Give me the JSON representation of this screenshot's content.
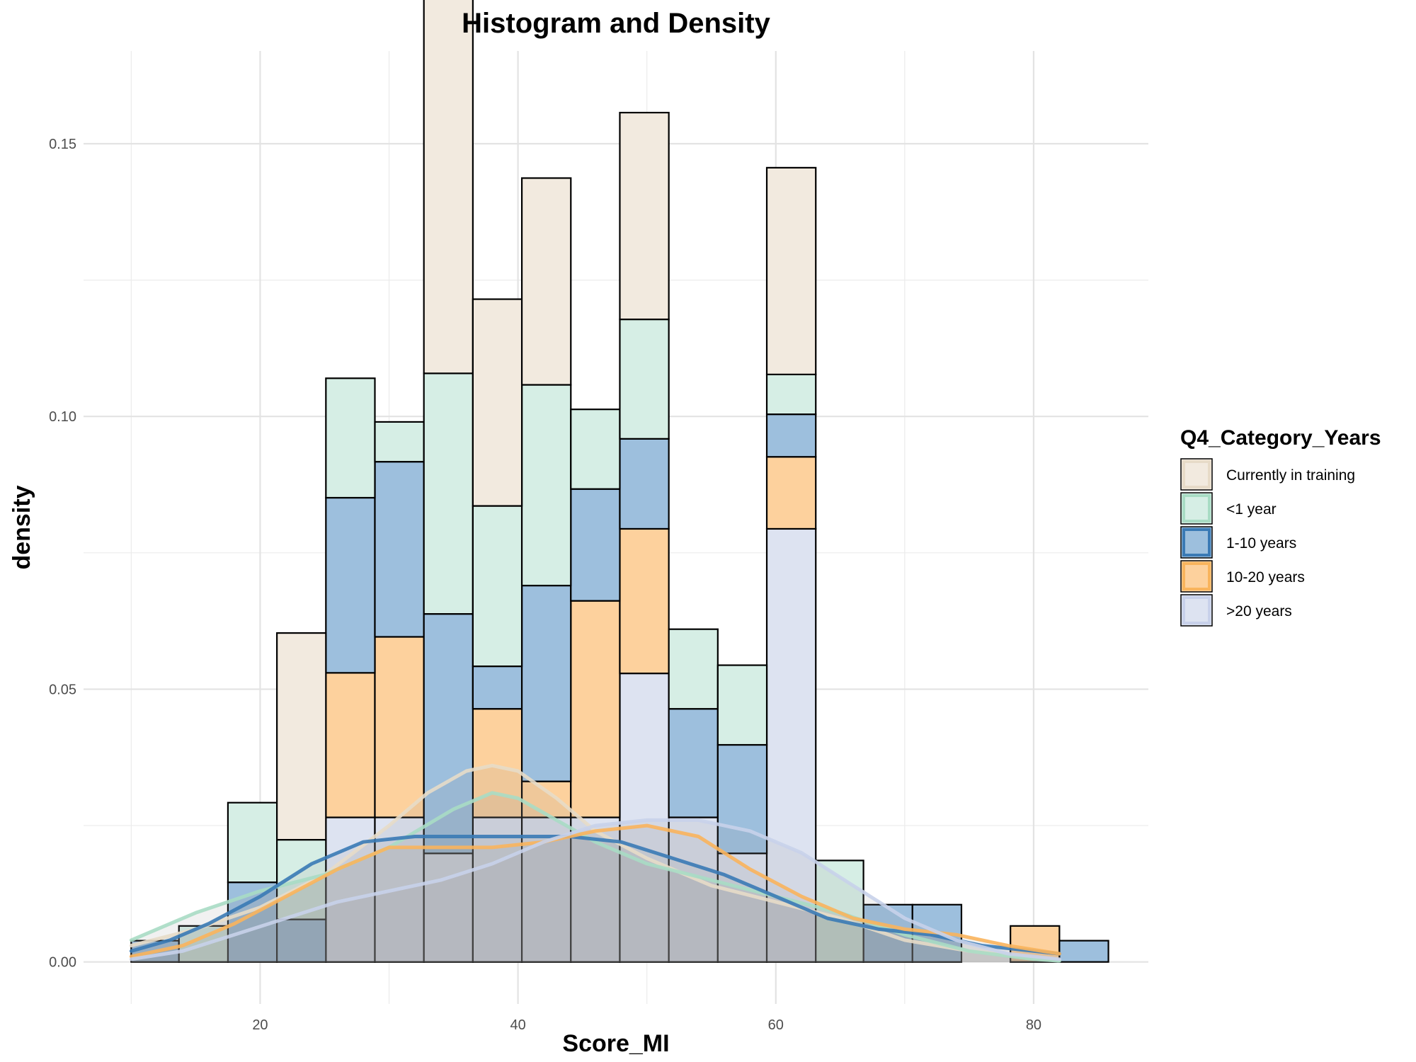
{
  "chart_data": {
    "type": "bar",
    "subtype": "stacked histogram with density overlays",
    "title": "Histogram and Density",
    "xlabel": "Score_MI",
    "ylabel": "density",
    "xlim": [
      6.3,
      88.9
    ],
    "ylim": [
      -0.0077,
      0.167
    ],
    "x_ticks": [
      20,
      40,
      60,
      80
    ],
    "y_ticks": [
      0.0,
      0.05,
      0.1,
      0.15
    ],
    "x_tick_labels": [
      "20",
      "40",
      "60",
      "80"
    ],
    "y_tick_labels": [
      "0.00",
      "0.05",
      "0.10",
      "0.15"
    ],
    "grid": true,
    "legend": {
      "title": "Q4_Category_Years",
      "placement": "right"
    },
    "bins": [
      [
        10.0,
        13.7
      ],
      [
        13.7,
        17.5
      ],
      [
        17.5,
        21.3
      ],
      [
        21.3,
        25.1
      ],
      [
        25.1,
        28.9
      ],
      [
        28.9,
        32.7
      ],
      [
        32.7,
        36.5
      ],
      [
        36.5,
        40.3
      ],
      [
        40.3,
        44.1
      ],
      [
        44.1,
        47.9
      ],
      [
        47.9,
        51.7
      ],
      [
        51.7,
        55.5
      ],
      [
        55.5,
        59.3
      ],
      [
        59.3,
        63.1
      ],
      [
        63.1,
        66.8
      ],
      [
        66.8,
        70.6
      ],
      [
        70.6,
        74.4
      ],
      [
        74.4,
        78.2
      ],
      [
        78.2,
        82.0
      ],
      [
        82.0,
        85.8
      ]
    ],
    "series": [
      {
        "name": ">20 years",
        "color": "#dde3f1",
        "line_color": "#c8d1ea",
        "values": [
          0,
          0,
          0,
          0,
          0.0265,
          0.0265,
          0.0199,
          0.0265,
          0.0265,
          0.0265,
          0.0529,
          0.0265,
          0.0199,
          0.0794,
          0,
          0,
          0,
          0,
          0,
          0
        ]
      },
      {
        "name": "10-20 years",
        "color": "#fdd19d",
        "line_color": "#f9b45c",
        "values": [
          0,
          0,
          0,
          0,
          0.0265,
          0.0331,
          0,
          0.0199,
          0.0066,
          0.0397,
          0.0265,
          0,
          0,
          0.0132,
          0,
          0,
          0,
          0,
          0.0066,
          0
        ]
      },
      {
        "name": "1-10 years",
        "color": "#9dbfdd",
        "line_color": "#3a7ab5",
        "values": [
          0.0039,
          0,
          0.0146,
          0.0078,
          0.0321,
          0.0321,
          0.0439,
          0.0078,
          0.0359,
          0.0205,
          0.0165,
          0.0199,
          0.0199,
          0.0078,
          0,
          0.0105,
          0.0105,
          0,
          0,
          0.0039
        ]
      },
      {
        "name": "<1 year",
        "color": "#d6eee5",
        "line_color": "#a8dcc4",
        "values": [
          0,
          0.0066,
          0.0146,
          0.0146,
          0.0219,
          0.0073,
          0.0441,
          0.0294,
          0.0368,
          0.0146,
          0.0219,
          0.0146,
          0.0146,
          0.0073,
          0.0186,
          0,
          0,
          0,
          0,
          0
        ]
      },
      {
        "name": "Currently in training",
        "color": "#f2eadf",
        "line_color": "#e7dbc8",
        "values": [
          0,
          0,
          0,
          0.0379,
          0,
          0,
          0.0759,
          0.0379,
          0.0379,
          0,
          0.0379,
          0,
          0,
          0.0379,
          0,
          0,
          0,
          0,
          0,
          0
        ]
      }
    ],
    "density_curves": [
      {
        "name": "Currently in training",
        "x": [
          10,
          15,
          20,
          25,
          30,
          33,
          36,
          38,
          40,
          43,
          46,
          50,
          55,
          60,
          65,
          70,
          75,
          80,
          82
        ],
        "y": [
          0.003,
          0.006,
          0.01,
          0.016,
          0.025,
          0.031,
          0.035,
          0.036,
          0.035,
          0.03,
          0.024,
          0.019,
          0.014,
          0.011,
          0.008,
          0.004,
          0.002,
          0.0007,
          0.0003
        ]
      },
      {
        "name": "<1 year",
        "x": [
          10,
          15,
          20,
          25,
          30,
          35,
          38,
          40,
          43,
          46,
          50,
          55,
          60,
          65,
          70,
          75,
          80,
          82
        ],
        "y": [
          0.004,
          0.009,
          0.013,
          0.016,
          0.021,
          0.028,
          0.031,
          0.03,
          0.026,
          0.022,
          0.018,
          0.015,
          0.012,
          0.009,
          0.005,
          0.002,
          0.0005,
          0.0002
        ]
      },
      {
        "name": "1-10 years",
        "x": [
          10,
          13,
          16,
          20,
          24,
          28,
          32,
          36,
          40,
          44,
          48,
          52,
          56,
          60,
          64,
          68,
          72,
          76,
          80,
          82
        ],
        "y": [
          0.002,
          0.004,
          0.007,
          0.012,
          0.018,
          0.022,
          0.023,
          0.023,
          0.023,
          0.023,
          0.022,
          0.019,
          0.016,
          0.012,
          0.008,
          0.006,
          0.005,
          0.003,
          0.002,
          0.0015
        ]
      },
      {
        "name": "10-20 years",
        "x": [
          10,
          14,
          18,
          22,
          26,
          30,
          34,
          38,
          42,
          46,
          50,
          54,
          58,
          62,
          66,
          70,
          74,
          78,
          82
        ],
        "y": [
          0.001,
          0.003,
          0.007,
          0.012,
          0.017,
          0.021,
          0.021,
          0.021,
          0.022,
          0.024,
          0.025,
          0.023,
          0.017,
          0.012,
          0.008,
          0.006,
          0.005,
          0.003,
          0.0015
        ]
      },
      {
        "name": ">20 years",
        "x": [
          10,
          14,
          18,
          22,
          26,
          30,
          34,
          38,
          42,
          46,
          50,
          54,
          58,
          62,
          66,
          70,
          74,
          78,
          82
        ],
        "y": [
          0.0005,
          0.002,
          0.005,
          0.008,
          0.011,
          0.013,
          0.015,
          0.018,
          0.022,
          0.025,
          0.026,
          0.026,
          0.024,
          0.02,
          0.014,
          0.008,
          0.004,
          0.0015,
          0.0005
        ]
      }
    ]
  }
}
